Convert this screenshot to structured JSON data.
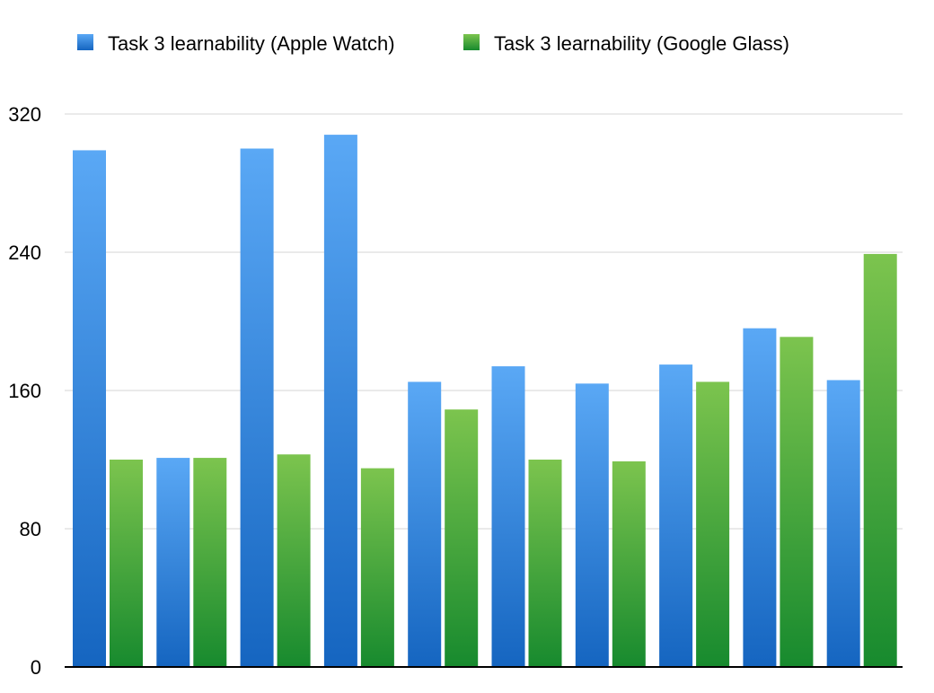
{
  "chart_data": {
    "type": "bar",
    "categories": [
      "",
      "",
      "",
      "",
      "",
      "",
      "",
      "",
      "",
      ""
    ],
    "series": [
      {
        "name": "Task 3 learnability (Apple Watch)",
        "color_top": "#5aa8f5",
        "color_bottom": "#1565c0",
        "values": [
          299,
          121,
          300,
          308,
          165,
          174,
          164,
          175,
          196,
          166
        ]
      },
      {
        "name": "Task 3 learnability (Google Glass)",
        "color_top": "#7cc44e",
        "color_bottom": "#178a2e",
        "values": [
          120,
          121,
          123,
          115,
          149,
          120,
          119,
          165,
          191,
          239
        ]
      }
    ],
    "title": "",
    "xlabel": "",
    "ylabel": "",
    "ylim": [
      0,
      320
    ],
    "yticks": [
      0,
      80,
      160,
      240,
      320
    ],
    "grid": true,
    "legend_position": "top-left"
  }
}
